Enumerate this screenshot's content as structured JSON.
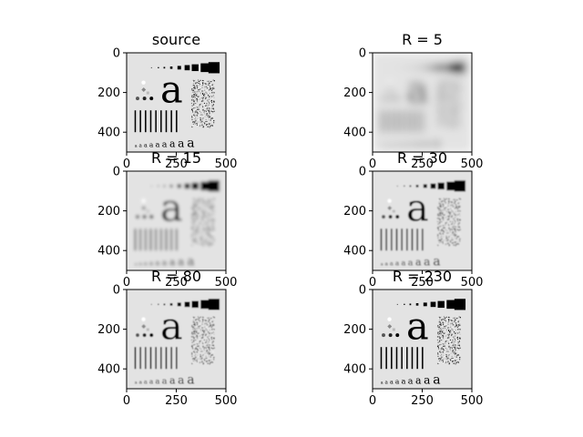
{
  "figure": {
    "panels": [
      {
        "title": "source",
        "blur": 0
      },
      {
        "title": "R = 5",
        "blur": 4.5
      },
      {
        "title": "R = 15",
        "blur": 1.6
      },
      {
        "title": "R = 30",
        "blur": 0.9
      },
      {
        "title": "R = 80",
        "blur": 0.4
      },
      {
        "title": "R = 230",
        "blur": 0.15
      }
    ],
    "x_ticks": [
      "0",
      "250",
      "500"
    ],
    "y_ticks": [
      "0",
      "200",
      "400"
    ],
    "x_tick_values": [
      0,
      250,
      500
    ],
    "y_tick_values": [
      0,
      200,
      400
    ],
    "image_size": [
      500,
      500
    ]
  }
}
